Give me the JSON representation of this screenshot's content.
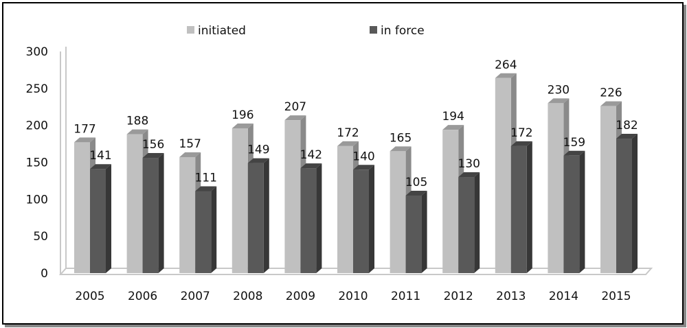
{
  "chart_data": {
    "type": "bar",
    "title": "",
    "xlabel": "",
    "ylabel": "",
    "ylim": [
      0,
      300
    ],
    "yticks": [
      0,
      50,
      100,
      150,
      200,
      250,
      300
    ],
    "grid": false,
    "legend_position": "top",
    "categories": [
      "2005",
      "2006",
      "2007",
      "2008",
      "2009",
      "2010",
      "2011",
      "2012",
      "2013",
      "2014",
      "2015"
    ],
    "series": [
      {
        "name": "initiated",
        "color": "#c0c0c0",
        "values": [
          177,
          188,
          157,
          196,
          207,
          172,
          165,
          194,
          264,
          230,
          226
        ]
      },
      {
        "name": "in force",
        "color": "#595959",
        "values": [
          141,
          156,
          111,
          149,
          142,
          140,
          105,
          130,
          172,
          159,
          182
        ]
      }
    ]
  }
}
